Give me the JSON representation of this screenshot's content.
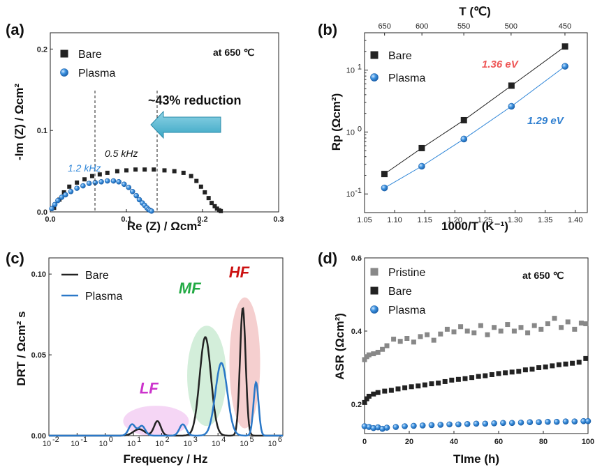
{
  "chart_data": [
    {
      "panel": "(a)",
      "type": "scatter",
      "xlabel": "Re (Z) / Ωcm²",
      "ylabel": "-Im (Z) / Ωcm²",
      "xlim": [
        0,
        0.3
      ],
      "ylim": [
        0,
        0.22
      ],
      "xticks": [
        "0.0",
        "0.1",
        "0.2",
        "0.3"
      ],
      "yticks": [
        "0.0",
        "0.1",
        "0.2"
      ],
      "legend_position": "top-left",
      "annotations": {
        "condition": "at 650 ℃",
        "reduction": "~43% reduction",
        "freq_bare": "0.5 kHz",
        "freq_plasma": "1.2 kHz"
      },
      "series": [
        {
          "name": "Bare",
          "color": "#222222",
          "marker": "square",
          "x": [
            0.005,
            0.012,
            0.018,
            0.025,
            0.035,
            0.045,
            0.055,
            0.065,
            0.075,
            0.088,
            0.1,
            0.112,
            0.124,
            0.136,
            0.15,
            0.163,
            0.175,
            0.185,
            0.192,
            0.198,
            0.203,
            0.208,
            0.212,
            0.216,
            0.219,
            0.222,
            0.224
          ],
          "y": [
            0.005,
            0.015,
            0.024,
            0.031,
            0.036,
            0.04,
            0.044,
            0.046,
            0.048,
            0.05,
            0.051,
            0.052,
            0.052,
            0.052,
            0.051,
            0.05,
            0.048,
            0.044,
            0.038,
            0.031,
            0.024,
            0.017,
            0.011,
            0.007,
            0.004,
            0.002,
            0.001
          ]
        },
        {
          "name": "Plasma",
          "color": "#2f86d8",
          "marker": "circle",
          "x": [
            0.002,
            0.006,
            0.01,
            0.015,
            0.02,
            0.027,
            0.035,
            0.043,
            0.051,
            0.059,
            0.067,
            0.075,
            0.083,
            0.09,
            0.097,
            0.103,
            0.108,
            0.113,
            0.117,
            0.121,
            0.124,
            0.127,
            0.129,
            0.131,
            0.133
          ],
          "y": [
            0.004,
            0.009,
            0.014,
            0.018,
            0.021,
            0.025,
            0.029,
            0.032,
            0.035,
            0.036,
            0.037,
            0.038,
            0.038,
            0.037,
            0.034,
            0.03,
            0.025,
            0.02,
            0.015,
            0.011,
            0.008,
            0.005,
            0.003,
            0.002,
            0.001
          ]
        }
      ]
    },
    {
      "panel": "(b)",
      "type": "line",
      "xlabel": "1000/T (K⁻¹)",
      "ylabel": "Rp (Ωcm²)",
      "top_xlabel": "T (℃)",
      "top_xticks": [
        "650",
        "600",
        "550",
        "500",
        "450"
      ],
      "xlim": [
        1.05,
        1.42
      ],
      "ylim_log": [
        0.05,
        40
      ],
      "yscale": "log",
      "xticks": [
        "1.05",
        "1.10",
        "1.15",
        "1.20",
        "1.25",
        "1.30",
        "1.35",
        "1.40"
      ],
      "legend_position": "top-left",
      "annotations": {
        "ea_bare": "1.36 eV",
        "ea_plasma": "1.29 eV"
      },
      "series": [
        {
          "name": "Bare",
          "color": "#222222",
          "marker": "square",
          "x": [
            1.083,
            1.145,
            1.215,
            1.294,
            1.383
          ],
          "y": [
            0.21,
            0.55,
            1.55,
            5.6,
            24
          ]
        },
        {
          "name": "Plasma",
          "color": "#2f86d8",
          "marker": "circle",
          "x": [
            1.083,
            1.145,
            1.215,
            1.294,
            1.383
          ],
          "y": [
            0.125,
            0.28,
            0.77,
            2.6,
            11.5
          ]
        }
      ]
    },
    {
      "panel": "(c)",
      "type": "line",
      "xlabel": "Frequency / Hz",
      "ylabel": "DRT / Ωcm² s",
      "xscale": "log",
      "xlim_exp": [
        -2,
        6.3
      ],
      "ylim": [
        0,
        0.11
      ],
      "yticks": [
        "0.00",
        "0.05",
        "0.10"
      ],
      "xtick_exponents": [
        -2,
        -1,
        0,
        1,
        2,
        3,
        4,
        5,
        6
      ],
      "legend_position": "top-left",
      "regions": [
        {
          "label": "LF",
          "color": "#cc33cc"
        },
        {
          "label": "MF",
          "color": "#22aa44"
        },
        {
          "label": "HF",
          "color": "#cc1111"
        }
      ],
      "series": [
        {
          "name": "Bare",
          "color": "#222222",
          "peaks": [
            [
              1.2,
              0.004,
              0.2
            ],
            [
              1.85,
              0.009,
              0.12
            ],
            [
              3.55,
              0.061,
              0.2
            ],
            [
              4.88,
              0.079,
              0.1
            ]
          ]
        },
        {
          "name": "Plasma",
          "color": "#2a78c8",
          "peaks": [
            [
              0.95,
              0.007,
              0.12
            ],
            [
              1.3,
              0.006,
              0.12
            ],
            [
              2.75,
              0.007,
              0.12
            ],
            [
              4.12,
              0.045,
              0.21
            ],
            [
              5.35,
              0.033,
              0.09
            ]
          ]
        }
      ]
    },
    {
      "panel": "(d)",
      "type": "scatter",
      "xlabel": "TIme (h)",
      "ylabel": "ASR (Ωcm²)",
      "xlim": [
        0,
        100
      ],
      "ylim": [
        0.12,
        0.6
      ],
      "xticks": [
        "0",
        "20",
        "40",
        "60",
        "80",
        "100"
      ],
      "yticks": [
        "0.2",
        "0.4",
        "0.6"
      ],
      "legend_position": "top-left",
      "annotations": {
        "condition": "at 650 ℃"
      },
      "series": [
        {
          "name": "Pristine",
          "color": "#888888",
          "marker": "square",
          "x": [
            0,
            1,
            2,
            4,
            6,
            8,
            10,
            13,
            16,
            19,
            22,
            25,
            28,
            31,
            34,
            37,
            40,
            43,
            46,
            49,
            52,
            55,
            58,
            61,
            64,
            67,
            70,
            73,
            76,
            79,
            82,
            85,
            88,
            91,
            94,
            97,
            99
          ],
          "y": [
            0.322,
            0.33,
            0.335,
            0.338,
            0.342,
            0.35,
            0.36,
            0.378,
            0.372,
            0.38,
            0.37,
            0.385,
            0.39,
            0.375,
            0.392,
            0.405,
            0.398,
            0.412,
            0.4,
            0.395,
            0.415,
            0.39,
            0.41,
            0.4,
            0.418,
            0.4,
            0.41,
            0.395,
            0.415,
            0.405,
            0.42,
            0.435,
            0.41,
            0.425,
            0.405,
            0.422,
            0.42
          ]
        },
        {
          "name": "Bare",
          "color": "#222222",
          "marker": "square",
          "x": [
            0,
            1,
            2,
            4,
            6,
            9,
            12,
            15,
            18,
            21,
            24,
            27,
            30,
            33,
            36,
            39,
            42,
            45,
            48,
            51,
            54,
            57,
            60,
            63,
            66,
            69,
            72,
            75,
            78,
            81,
            84,
            87,
            90,
            93,
            96,
            99
          ],
          "y": [
            0.205,
            0.215,
            0.222,
            0.228,
            0.232,
            0.236,
            0.238,
            0.242,
            0.245,
            0.248,
            0.25,
            0.253,
            0.256,
            0.258,
            0.262,
            0.266,
            0.268,
            0.27,
            0.273,
            0.276,
            0.278,
            0.281,
            0.284,
            0.286,
            0.288,
            0.29,
            0.294,
            0.296,
            0.3,
            0.302,
            0.305,
            0.308,
            0.31,
            0.312,
            0.315,
            0.325
          ]
        },
        {
          "name": "Plasma",
          "color": "#2f86d8",
          "marker": "circle",
          "x": [
            0,
            2,
            4,
            6,
            8,
            10,
            14,
            18,
            22,
            26,
            30,
            34,
            38,
            42,
            46,
            50,
            54,
            58,
            62,
            66,
            70,
            74,
            78,
            82,
            86,
            90,
            94,
            98,
            100
          ],
          "y": [
            0.14,
            0.138,
            0.135,
            0.137,
            0.133,
            0.136,
            0.138,
            0.14,
            0.141,
            0.142,
            0.143,
            0.144,
            0.145,
            0.145,
            0.146,
            0.147,
            0.147,
            0.148,
            0.149,
            0.149,
            0.15,
            0.151,
            0.151,
            0.152,
            0.152,
            0.153,
            0.153,
            0.154,
            0.154
          ]
        }
      ]
    }
  ]
}
